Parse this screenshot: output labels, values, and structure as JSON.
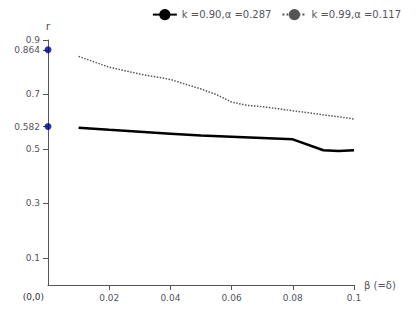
{
  "chart_data": {
    "type": "line",
    "xlabel": "β (=δ)",
    "ylabel": "r",
    "xlim": [
      0,
      0.1
    ],
    "ylim": [
      0,
      0.9
    ],
    "xticks": [
      0.02,
      0.04,
      0.06,
      0.08,
      0.1
    ],
    "yticks": [
      0.1,
      0.3,
      0.5,
      0.582,
      0.7,
      0.864,
      0.9
    ],
    "grid": false,
    "legend": "upper right",
    "annotations": [
      {
        "text": "(0,0)",
        "x": 0,
        "y": 0
      }
    ],
    "series": [
      {
        "name": "k =0.90,α =0.287",
        "type": "line",
        "color": "black",
        "line_style": "solid",
        "x": [
          0.01,
          0.02,
          0.03,
          0.04,
          0.05,
          0.06,
          0.07,
          0.08,
          0.09,
          0.095,
          0.1
        ],
        "values": [
          0.578,
          0.57,
          0.563,
          0.556,
          0.549,
          0.545,
          0.54,
          0.535,
          0.495,
          0.492,
          0.495
        ]
      },
      {
        "name": "k =0.99,α =0.117",
        "type": "line",
        "color": "#555555",
        "line_style": "dotted",
        "x": [
          0.01,
          0.015,
          0.02,
          0.03,
          0.04,
          0.05,
          0.055,
          0.06,
          0.065,
          0.07,
          0.075,
          0.08,
          0.085,
          0.09,
          0.095,
          0.1
        ],
        "values": [
          0.84,
          0.82,
          0.8,
          0.775,
          0.755,
          0.72,
          0.7,
          0.672,
          0.66,
          0.655,
          0.648,
          0.64,
          0.633,
          0.625,
          0.618,
          0.61
        ]
      },
      {
        "type": "scatter",
        "color": "#00008B",
        "marker": "circle",
        "x": [
          0,
          0
        ],
        "values": [
          0.582,
          0.864
        ]
      }
    ]
  }
}
